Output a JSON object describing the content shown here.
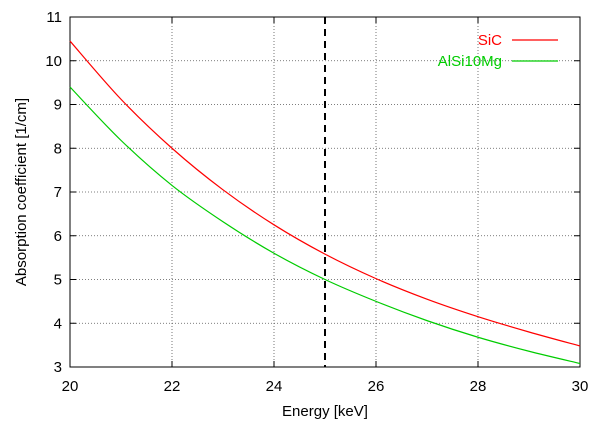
{
  "chart_data": {
    "type": "line",
    "title": "",
    "xlabel": "Energy [keV]",
    "ylabel": "Absorption coefficient [1/cm]",
    "xlim": [
      20,
      30
    ],
    "ylim": [
      3,
      11
    ],
    "xticks": [
      20,
      22,
      24,
      26,
      28,
      30
    ],
    "yticks": [
      3,
      4,
      5,
      6,
      7,
      8,
      9,
      10,
      11
    ],
    "grid": true,
    "legend_position": "top-right",
    "vertical_line": {
      "x": 25,
      "style": "dashed",
      "color": "#000000"
    },
    "series": [
      {
        "name": "SiC",
        "color": "#ff0000",
        "x": [
          20,
          21,
          22,
          23,
          24,
          25,
          26,
          27,
          28,
          29,
          30
        ],
        "y": [
          10.45,
          9.12,
          8.0,
          7.05,
          6.25,
          5.58,
          5.02,
          4.55,
          4.15,
          3.8,
          3.48
        ]
      },
      {
        "name": "AlSi10Mg",
        "color": "#00cc00",
        "x": [
          20,
          21,
          22,
          23,
          24,
          25,
          26,
          27,
          28,
          29,
          30
        ],
        "y": [
          9.4,
          8.18,
          7.15,
          6.32,
          5.6,
          5.0,
          4.5,
          4.06,
          3.68,
          3.36,
          3.08
        ]
      }
    ]
  }
}
